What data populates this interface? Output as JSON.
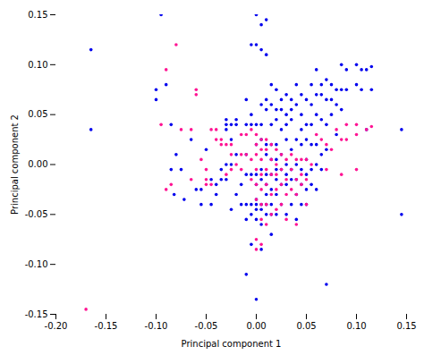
{
  "chart_data": {
    "type": "scatter",
    "xlabel": "Principal component 1",
    "ylabel": "Principal component 2",
    "xlim": [
      -0.2,
      0.15
    ],
    "ylim": [
      -0.15,
      0.15
    ],
    "xticks": [
      {
        "value": -0.2,
        "label": "-0.20"
      },
      -0.15,
      {
        "value": -0.1,
        "label": "-0.10"
      },
      -0.05,
      {
        "value": 0.0,
        "label": "0.00"
      },
      0.05,
      {
        "value": 0.1,
        "label": "0.10"
      },
      0.15
    ],
    "yticks": [
      -0.15,
      {
        "value": -0.1,
        "label": "-0.10"
      },
      -0.05,
      {
        "value": 0.0,
        "label": "0.00"
      },
      0.05,
      {
        "value": 0.1,
        "label": "0.10"
      },
      0.15
    ],
    "grid": false,
    "series": [
      {
        "color": "#0000ee",
        "values": [
          [
            -0.165,
            0.115
          ],
          [
            -0.165,
            0.035
          ],
          [
            -0.1,
            0.075
          ],
          [
            -0.1,
            0.065
          ],
          [
            -0.095,
            0.15
          ],
          [
            -0.09,
            0.08
          ],
          [
            -0.085,
            0.04
          ],
          [
            -0.085,
            -0.005
          ],
          [
            -0.082,
            -0.03
          ],
          [
            -0.08,
            0.01
          ],
          [
            -0.075,
            -0.005
          ],
          [
            -0.072,
            -0.035
          ],
          [
            -0.065,
            0.025
          ],
          [
            -0.06,
            -0.025
          ],
          [
            -0.055,
            -0.025
          ],
          [
            -0.055,
            -0.04
          ],
          [
            -0.05,
            0.015
          ],
          [
            -0.045,
            -0.015
          ],
          [
            -0.045,
            -0.04
          ],
          [
            -0.04,
            -0.02
          ],
          [
            -0.04,
            -0.03
          ],
          [
            -0.035,
            -0.005
          ],
          [
            -0.035,
            -0.015
          ],
          [
            -0.03,
            0.045
          ],
          [
            -0.03,
            0.04
          ],
          [
            -0.03,
            0.035
          ],
          [
            -0.03,
            0.0
          ],
          [
            -0.03,
            -0.015
          ],
          [
            -0.025,
            0.04
          ],
          [
            -0.025,
            0.025
          ],
          [
            -0.025,
            0.0
          ],
          [
            -0.025,
            -0.045
          ],
          [
            -0.02,
            0.045
          ],
          [
            -0.02,
            0.04
          ],
          [
            -0.02,
            0.01
          ],
          [
            -0.02,
            -0.03
          ],
          [
            -0.015,
            -0.02
          ],
          [
            -0.015,
            -0.04
          ],
          [
            -0.01,
            0.065
          ],
          [
            -0.01,
            0.04
          ],
          [
            -0.01,
            0.01
          ],
          [
            -0.01,
            -0.01
          ],
          [
            -0.01,
            -0.04
          ],
          [
            -0.01,
            -0.055
          ],
          [
            -0.01,
            -0.11
          ],
          [
            -0.005,
            0.12
          ],
          [
            -0.005,
            0.05
          ],
          [
            -0.005,
            0.04
          ],
          [
            -0.005,
            -0.01
          ],
          [
            -0.005,
            -0.04
          ],
          [
            -0.005,
            -0.05
          ],
          [
            -0.005,
            -0.08
          ],
          [
            0.0,
            0.15
          ],
          [
            0.0,
            0.12
          ],
          [
            0.0,
            0.04
          ],
          [
            0.0,
            0.02
          ],
          [
            0.0,
            -0.01
          ],
          [
            0.0,
            -0.02
          ],
          [
            0.0,
            -0.035
          ],
          [
            0.0,
            -0.04
          ],
          [
            0.0,
            -0.045
          ],
          [
            0.0,
            -0.055
          ],
          [
            0.0,
            -0.135
          ],
          [
            0.005,
            0.14
          ],
          [
            0.005,
            0.115
          ],
          [
            0.005,
            0.06
          ],
          [
            0.005,
            0.04
          ],
          [
            0.005,
            0.025
          ],
          [
            0.005,
            -0.005
          ],
          [
            0.005,
            -0.015
          ],
          [
            0.005,
            -0.04
          ],
          [
            0.005,
            -0.045
          ],
          [
            0.005,
            -0.06
          ],
          [
            0.005,
            -0.085
          ],
          [
            0.01,
            0.145
          ],
          [
            0.01,
            0.11
          ],
          [
            0.01,
            0.065
          ],
          [
            0.01,
            0.055
          ],
          [
            0.01,
            0.02
          ],
          [
            0.01,
            0.01
          ],
          [
            0.01,
            -0.01
          ],
          [
            0.01,
            -0.02
          ],
          [
            0.01,
            -0.03
          ],
          [
            0.01,
            -0.04
          ],
          [
            0.01,
            -0.05
          ],
          [
            0.015,
            0.08
          ],
          [
            0.015,
            0.06
          ],
          [
            0.015,
            0.04
          ],
          [
            0.015,
            0.02
          ],
          [
            0.015,
            0.005
          ],
          [
            0.015,
            -0.01
          ],
          [
            0.015,
            -0.025
          ],
          [
            0.015,
            -0.04
          ],
          [
            0.015,
            -0.05
          ],
          [
            0.015,
            -0.07
          ],
          [
            0.02,
            0.075
          ],
          [
            0.02,
            0.055
          ],
          [
            0.02,
            0.045
          ],
          [
            0.02,
            0.02
          ],
          [
            0.02,
            0.005
          ],
          [
            0.02,
            -0.005
          ],
          [
            0.02,
            -0.015
          ],
          [
            0.02,
            -0.03
          ],
          [
            0.02,
            -0.05
          ],
          [
            0.025,
            0.065
          ],
          [
            0.025,
            0.055
          ],
          [
            0.025,
            0.035
          ],
          [
            0.025,
            0.01
          ],
          [
            0.025,
            -0.005
          ],
          [
            0.025,
            -0.02
          ],
          [
            0.025,
            -0.04
          ],
          [
            0.03,
            0.07
          ],
          [
            0.03,
            0.05
          ],
          [
            0.03,
            0.04
          ],
          [
            0.03,
            0.025
          ],
          [
            0.03,
            0.0
          ],
          [
            0.03,
            -0.01
          ],
          [
            0.03,
            -0.02
          ],
          [
            0.03,
            -0.05
          ],
          [
            0.035,
            0.065
          ],
          [
            0.035,
            0.055
          ],
          [
            0.035,
            0.045
          ],
          [
            0.035,
            0.015
          ],
          [
            0.035,
            -0.005
          ],
          [
            0.035,
            -0.015
          ],
          [
            0.035,
            -0.04
          ],
          [
            0.04,
            0.08
          ],
          [
            0.04,
            0.06
          ],
          [
            0.04,
            0.025
          ],
          [
            0.04,
            0.0
          ],
          [
            0.04,
            -0.015
          ],
          [
            0.04,
            -0.03
          ],
          [
            0.04,
            -0.055
          ],
          [
            0.045,
            0.07
          ],
          [
            0.045,
            0.05
          ],
          [
            0.045,
            0.035
          ],
          [
            0.045,
            0.02
          ],
          [
            0.045,
            -0.005
          ],
          [
            0.045,
            -0.02
          ],
          [
            0.045,
            -0.04
          ],
          [
            0.05,
            0.065
          ],
          [
            0.05,
            0.04
          ],
          [
            0.05,
            0.025
          ],
          [
            0.05,
            0.005
          ],
          [
            0.05,
            -0.01
          ],
          [
            0.05,
            -0.025
          ],
          [
            0.05,
            -0.04
          ],
          [
            0.055,
            0.08
          ],
          [
            0.055,
            0.06
          ],
          [
            0.055,
            0.04
          ],
          [
            0.055,
            0.02
          ],
          [
            0.055,
            -0.005
          ],
          [
            0.055,
            -0.02
          ],
          [
            0.06,
            0.095
          ],
          [
            0.06,
            0.07
          ],
          [
            0.06,
            0.05
          ],
          [
            0.06,
            0.02
          ],
          [
            0.06,
            0.0
          ],
          [
            0.06,
            -0.025
          ],
          [
            0.065,
            0.08
          ],
          [
            0.065,
            0.07
          ],
          [
            0.065,
            0.045
          ],
          [
            0.065,
            0.01
          ],
          [
            0.065,
            -0.005
          ],
          [
            0.07,
            0.085
          ],
          [
            0.07,
            0.065
          ],
          [
            0.07,
            0.04
          ],
          [
            0.07,
            0.015
          ],
          [
            0.075,
            0.08
          ],
          [
            0.075,
            0.065
          ],
          [
            0.075,
            0.05
          ],
          [
            0.08,
            0.075
          ],
          [
            0.08,
            0.06
          ],
          [
            0.08,
            0.03
          ],
          [
            0.085,
            0.1
          ],
          [
            0.085,
            0.075
          ],
          [
            0.085,
            0.055
          ],
          [
            0.09,
            0.095
          ],
          [
            0.09,
            0.075
          ],
          [
            0.1,
            0.1
          ],
          [
            0.1,
            0.08
          ],
          [
            0.105,
            0.095
          ],
          [
            0.105,
            0.075
          ],
          [
            0.11,
            0.095
          ],
          [
            0.11,
            0.035
          ],
          [
            0.115,
            0.098
          ],
          [
            0.115,
            0.075
          ],
          [
            0.145,
            0.035
          ],
          [
            0.145,
            -0.05
          ],
          [
            0.07,
            -0.12
          ]
        ]
      },
      {
        "color": "#ff1493",
        "values": [
          [
            -0.17,
            -0.145
          ],
          [
            -0.08,
            0.12
          ],
          [
            -0.09,
            0.095
          ],
          [
            -0.095,
            0.04
          ],
          [
            -0.09,
            -0.025
          ],
          [
            -0.085,
            -0.02
          ],
          [
            -0.075,
            0.035
          ],
          [
            -0.065,
            0.035
          ],
          [
            -0.065,
            -0.015
          ],
          [
            -0.06,
            0.075
          ],
          [
            -0.06,
            0.07
          ],
          [
            -0.055,
            0.005
          ],
          [
            -0.05,
            -0.005
          ],
          [
            -0.05,
            -0.015
          ],
          [
            -0.05,
            -0.02
          ],
          [
            -0.045,
            0.035
          ],
          [
            -0.045,
            -0.02
          ],
          [
            -0.04,
            0.035
          ],
          [
            -0.04,
            0.025
          ],
          [
            -0.035,
            0.025
          ],
          [
            -0.035,
            0.02
          ],
          [
            -0.03,
            0.02
          ],
          [
            -0.03,
            -0.01
          ],
          [
            -0.025,
            0.02
          ],
          [
            -0.025,
            0.01
          ],
          [
            -0.025,
            -0.005
          ],
          [
            -0.02,
            0.0
          ],
          [
            -0.015,
            0.03
          ],
          [
            -0.015,
            0.01
          ],
          [
            -0.015,
            -0.005
          ],
          [
            -0.01,
            0.03
          ],
          [
            -0.01,
            0.01
          ],
          [
            -0.005,
            0.035
          ],
          [
            -0.005,
            0.005
          ],
          [
            -0.005,
            -0.015
          ],
          [
            0.0,
            0.03
          ],
          [
            0.0,
            0.02
          ],
          [
            0.0,
            0.01
          ],
          [
            0.0,
            -0.005
          ],
          [
            0.0,
            -0.02
          ],
          [
            0.0,
            -0.035
          ],
          [
            0.0,
            -0.075
          ],
          [
            0.0,
            -0.085
          ],
          [
            0.005,
            0.025
          ],
          [
            0.005,
            0.015
          ],
          [
            0.005,
            0.005
          ],
          [
            0.005,
            -0.01
          ],
          [
            0.005,
            -0.025
          ],
          [
            0.005,
            -0.04
          ],
          [
            0.005,
            -0.055
          ],
          [
            0.005,
            -0.08
          ],
          [
            0.01,
            0.025
          ],
          [
            0.01,
            0.015
          ],
          [
            0.01,
            -0.005
          ],
          [
            0.01,
            -0.02
          ],
          [
            0.01,
            -0.04
          ],
          [
            0.01,
            -0.06
          ],
          [
            0.015,
            0.02
          ],
          [
            0.015,
            0.005
          ],
          [
            0.015,
            -0.01
          ],
          [
            0.015,
            -0.03
          ],
          [
            0.015,
            -0.05
          ],
          [
            0.02,
            0.015
          ],
          [
            0.02,
            0.0
          ],
          [
            0.02,
            -0.01
          ],
          [
            0.02,
            -0.025
          ],
          [
            0.02,
            -0.045
          ],
          [
            0.025,
            0.01
          ],
          [
            0.025,
            -0.005
          ],
          [
            0.025,
            -0.02
          ],
          [
            0.025,
            -0.04
          ],
          [
            0.03,
            0.005
          ],
          [
            0.03,
            -0.015
          ],
          [
            0.03,
            -0.03
          ],
          [
            0.03,
            -0.055
          ],
          [
            0.035,
            0.01
          ],
          [
            0.035,
            -0.005
          ],
          [
            0.035,
            -0.025
          ],
          [
            0.04,
            0.005
          ],
          [
            0.04,
            -0.015
          ],
          [
            0.04,
            -0.03
          ],
          [
            0.04,
            -0.06
          ],
          [
            0.045,
            0.005
          ],
          [
            0.045,
            -0.01
          ],
          [
            0.045,
            -0.02
          ],
          [
            0.05,
            0.005
          ],
          [
            0.05,
            -0.015
          ],
          [
            0.05,
            -0.04
          ],
          [
            0.055,
            0.0
          ],
          [
            0.06,
            0.03
          ],
          [
            0.065,
            0.025
          ],
          [
            0.07,
            0.02
          ],
          [
            0.07,
            -0.005
          ],
          [
            0.075,
            0.015
          ],
          [
            0.08,
            0.035
          ],
          [
            0.085,
            0.025
          ],
          [
            0.085,
            -0.01
          ],
          [
            0.09,
            0.04
          ],
          [
            0.09,
            0.025
          ],
          [
            0.1,
            0.04
          ],
          [
            0.1,
            0.03
          ],
          [
            0.1,
            -0.005
          ],
          [
            0.11,
            0.035
          ],
          [
            0.115,
            0.038
          ]
        ]
      }
    ]
  }
}
